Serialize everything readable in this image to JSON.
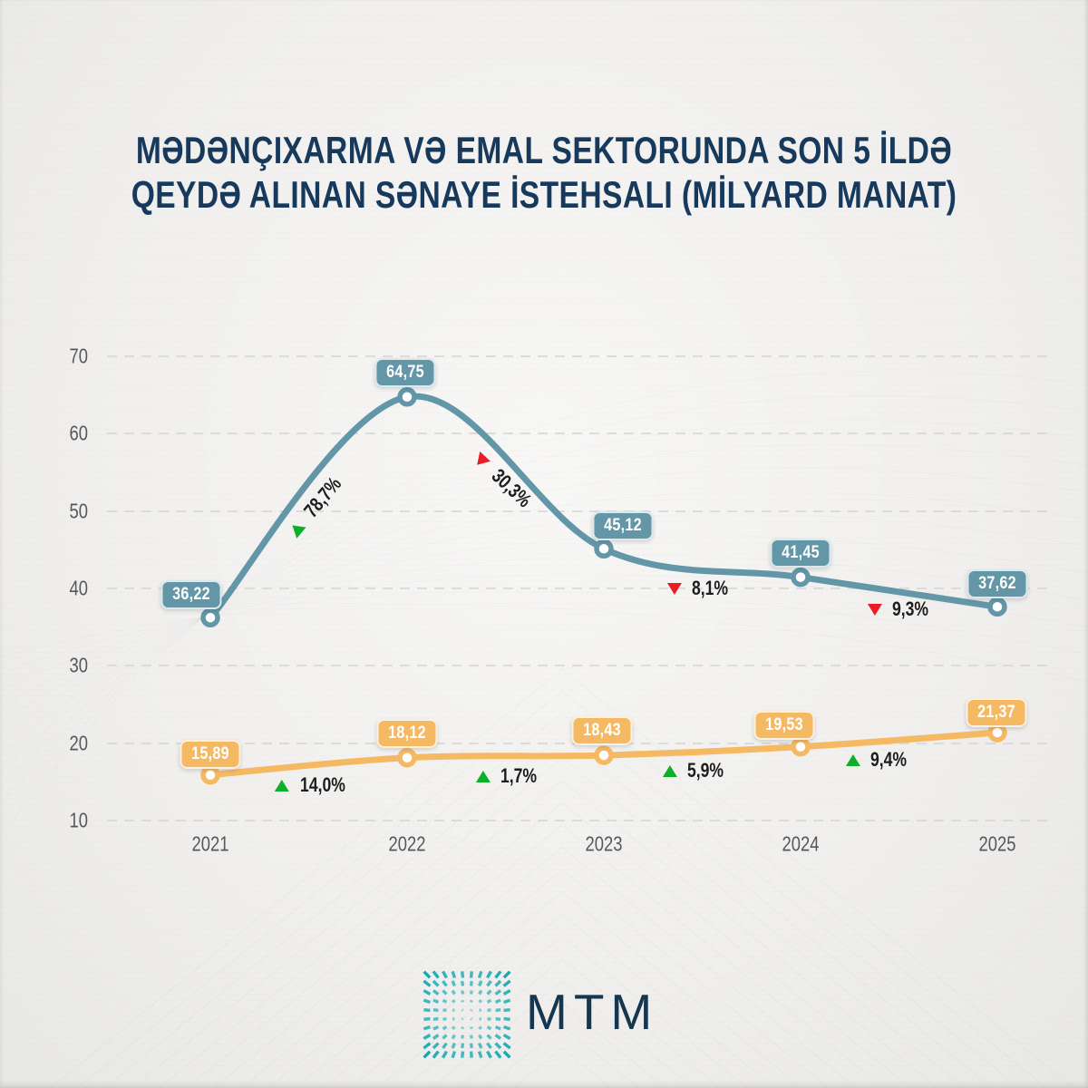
{
  "title": {
    "line1": "MƏDƏNÇIXARMA VƏ EMAL SEKTORUNDA SON 5 İLDƏ",
    "line2": "QEYDƏ ALINAN SƏNAYE İSTEHSALI (MİLYARD MANAT)"
  },
  "footer": {
    "logo_text": "MTM"
  },
  "colors": {
    "title_navy": "#17395C",
    "series_teal": "#6397A8",
    "series_orange": "#F6B963",
    "increase_green": "#0CAF2A",
    "decrease_red": "#EA1C25",
    "axis_gray": "#57575A",
    "grid_gray": "#D8D8D3",
    "background": "#F1F0EE",
    "logo_teal": "#17A9B1"
  },
  "chart_data": {
    "type": "line",
    "title": "MƏDƏNÇIXARMA VƏ EMAL SEKTORUNDA SON 5 İLDƏ QEYDƏ ALINAN SƏNAYE İSTEHSALI (MİLYARD MANAT)",
    "unit": "milyard manat",
    "x_labels": [
      "2021",
      "2022",
      "2023",
      "2024",
      "2025"
    ],
    "y_ticks": [
      70,
      60,
      50,
      40,
      30,
      20,
      10
    ],
    "y_axis": {
      "min": 10,
      "max": 70,
      "step": 10
    },
    "grid": "dashed-horizontal",
    "legend": "none",
    "series": [
      {
        "id": "series-1-teal",
        "color": "#6397A8",
        "values": [
          36.22,
          64.75,
          45.12,
          41.45,
          37.62
        ],
        "point_labels": [
          "36,22",
          "64,75",
          "45,12",
          "41,45",
          "37,62"
        ],
        "changes": [
          {
            "direction": "up",
            "label": "78,7%"
          },
          {
            "direction": "down",
            "label": "30,3%"
          },
          {
            "direction": "down",
            "label": "8,1%"
          },
          {
            "direction": "down",
            "label": "9,3%"
          }
        ]
      },
      {
        "id": "series-2-orange",
        "color": "#F6B963",
        "values": [
          15.89,
          18.12,
          18.43,
          19.53,
          21.37
        ],
        "point_labels": [
          "15,89",
          "18,12",
          "18,43",
          "19,53",
          "21,37"
        ],
        "changes": [
          {
            "direction": "up",
            "label": "14,0%"
          },
          {
            "direction": "up",
            "label": "1,7%"
          },
          {
            "direction": "up",
            "label": "5,9%"
          },
          {
            "direction": "up",
            "label": "9,4%"
          }
        ]
      }
    ]
  }
}
